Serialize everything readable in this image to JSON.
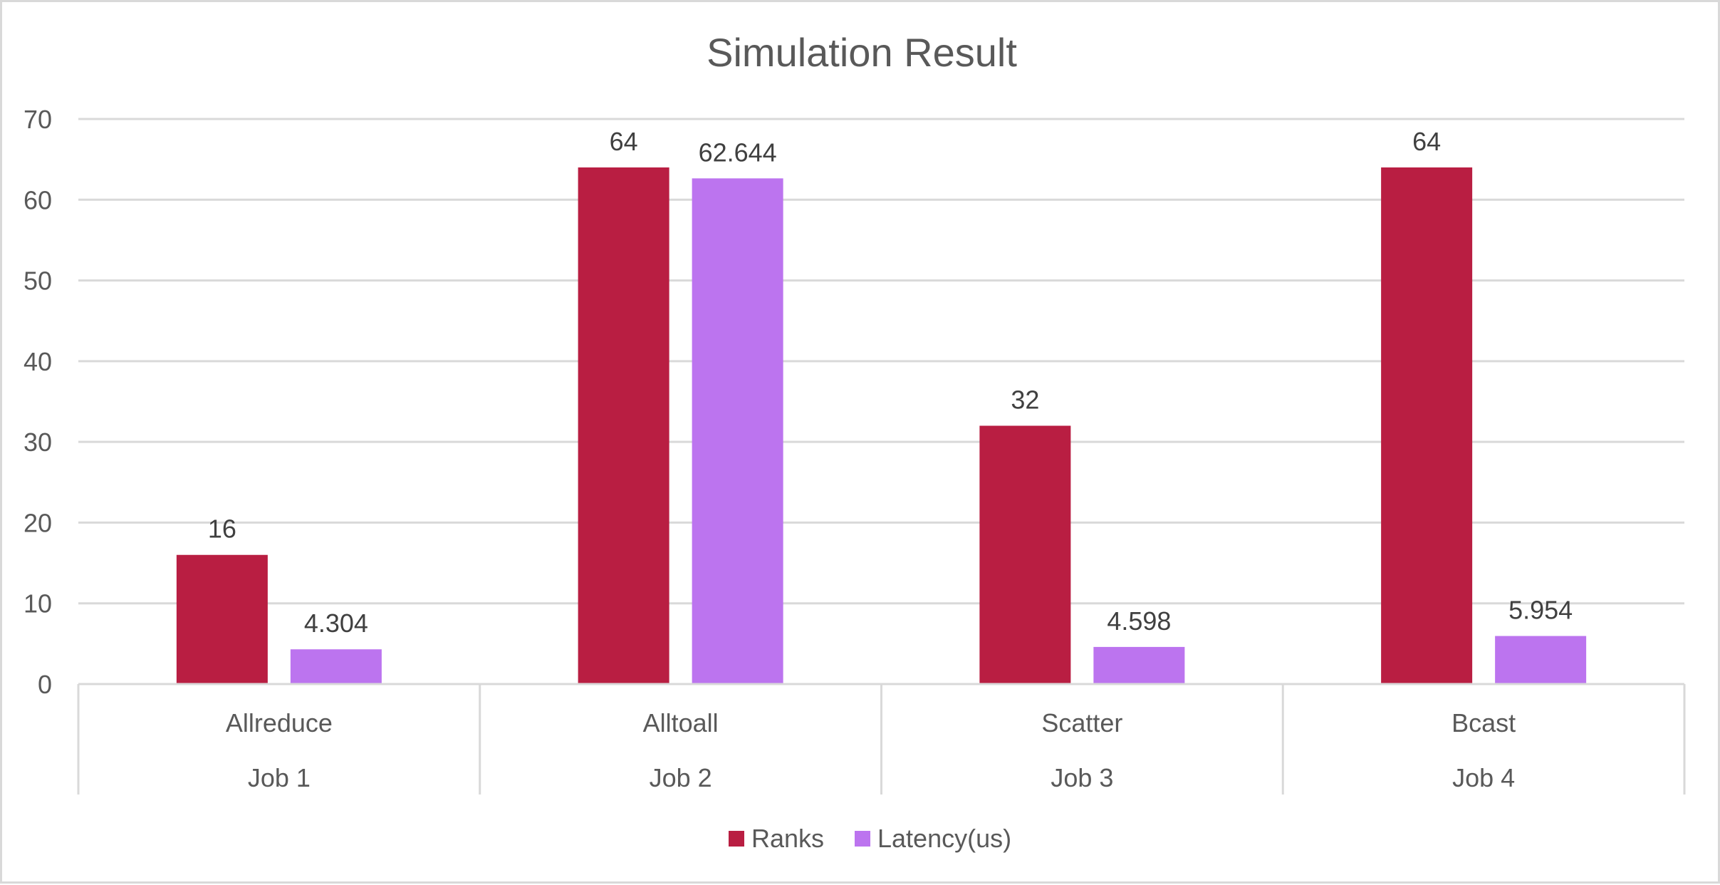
{
  "chart_data": {
    "type": "bar",
    "title": "Simulation Result",
    "xlabel": "",
    "ylabel": "",
    "ylim": [
      0,
      70
    ],
    "yticks": [
      0,
      10,
      20,
      30,
      40,
      50,
      60,
      70
    ],
    "grid": true,
    "legend_position": "bottom",
    "categories": [
      "Allreduce",
      "Alltoall",
      "Scatter",
      "Bcast"
    ],
    "groups": [
      "Job 1",
      "Job 2",
      "Job 3",
      "Job 4"
    ],
    "series": [
      {
        "name": "Ranks",
        "color": "#b91e42",
        "values": [
          16,
          64,
          32,
          64
        ],
        "labels": [
          "16",
          "64",
          "32",
          "64"
        ]
      },
      {
        "name": "Latency(us)",
        "color": "#bc74ef",
        "values": [
          4.304,
          62.644,
          4.598,
          5.954
        ],
        "labels": [
          "4.304",
          "62.644",
          "4.598",
          "5.954"
        ]
      }
    ]
  }
}
